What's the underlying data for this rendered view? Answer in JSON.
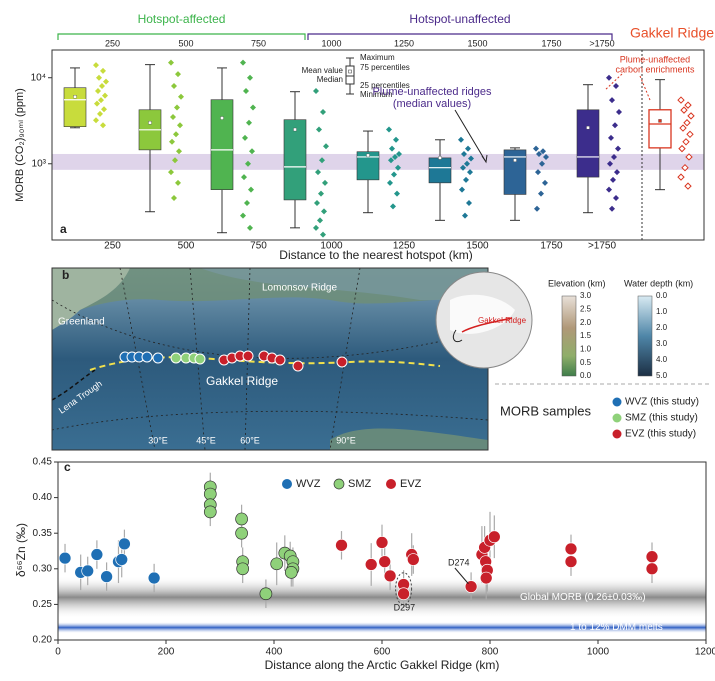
{
  "chart_data": [
    {
      "type": "box",
      "panel_label": "a",
      "ylabel": "MORB (CO₂)₉₀ₘₗ (ppm)",
      "xlabel": "Distance to the nearest hotspot (km)",
      "log_scale": true,
      "ylim": [
        130,
        21000
      ],
      "yticks": [
        {
          "value": 1000,
          "label": "10³"
        },
        {
          "value": 10000,
          "label": "10⁴"
        }
      ],
      "edge_labels": [
        "250",
        "500",
        "750",
        "1000",
        "1250",
        "1500",
        "1750",
        ">1750"
      ],
      "groups": [
        {
          "name": "Hotspot-affected",
          "color": "#3cb44b"
        },
        {
          "name": "Hotspot-unaffected",
          "color": "#4b2a8a"
        },
        {
          "name": "Gakkel Ridge",
          "color": "#e8502a"
        }
      ],
      "reference_band": [
        850,
        1300
      ],
      "band_color": "#d9cce6",
      "box_key": [
        "Maximum",
        "75 percentiles",
        "Mean value",
        "Median",
        "25 percentiles",
        "Minimum"
      ],
      "annotations": [
        "Plume-unaffected ridges",
        "(median values)",
        "Plume-unaffected",
        "carbon enrichments"
      ],
      "boxes": [
        {
          "color": "#c8dc3c",
          "filled": true,
          "min": 2620,
          "q1": 2700,
          "median": 5550,
          "q3": 7650,
          "max": 13000,
          "mean": 6000,
          "points": [
            14000,
            12000,
            10000,
            9000,
            8000,
            7000,
            6200,
            5500,
            5000,
            4300,
            3800,
            3200,
            2800
          ]
        },
        {
          "color": "#8cc83c",
          "filled": true,
          "min": 277,
          "q1": 1450,
          "median": 2480,
          "q3": 4240,
          "max": 14200,
          "mean": 3000,
          "points": [
            15000,
            11000,
            8000,
            6000,
            4500,
            3500,
            2800,
            2200,
            1800,
            1400,
            1100,
            800,
            600,
            400
          ]
        },
        {
          "color": "#50b450",
          "filled": true,
          "min": 158,
          "q1": 500,
          "median": 1450,
          "q3": 5550,
          "max": 13000,
          "mean": 3400,
          "points": [
            15000,
            10000,
            7000,
            4500,
            3000,
            2000,
            1400,
            1000,
            700,
            500,
            350,
            250,
            180
          ]
        },
        {
          "color": "#32a07a",
          "filled": true,
          "min": 180,
          "q1": 380,
          "median": 920,
          "q3": 3250,
          "max": 6880,
          "mean": 2500,
          "points": [
            7000,
            4000,
            2500,
            1600,
            1100,
            800,
            600,
            450,
            350,
            280,
            220,
            180,
            150
          ]
        },
        {
          "color": "#23968c",
          "filled": true,
          "min": 270,
          "q1": 650,
          "median": 1200,
          "q3": 1380,
          "max": 2400,
          "mean": 1250,
          "points": [
            2500,
            1900,
            1500,
            1300,
            1200,
            1100,
            900,
            750,
            600,
            450,
            320
          ]
        },
        {
          "color": "#1e7896",
          "filled": true,
          "min": 220,
          "q1": 600,
          "median": 900,
          "q3": 1170,
          "max": 1900,
          "mean": 1170,
          "points": [
            1900,
            1500,
            1300,
            1150,
            1000,
            900,
            800,
            650,
            500,
            350,
            250
          ]
        },
        {
          "color": "#2d6496",
          "filled": true,
          "min": 220,
          "q1": 440,
          "median": 1200,
          "q3": 1450,
          "max": 1530,
          "mean": 1100,
          "points": [
            1500,
            1400,
            1300,
            1200,
            1000,
            800,
            600,
            450,
            300
          ]
        },
        {
          "color": "#3c2d8c",
          "filled": true,
          "min": 270,
          "q1": 700,
          "median": 1200,
          "q3": 4240,
          "max": 8300,
          "mean": 2630,
          "points": [
            10000,
            8000,
            5500,
            4000,
            2800,
            2000,
            1500,
            1200,
            1000,
            800,
            650,
            500,
            400,
            300
          ]
        },
        {
          "color": "#d9351f",
          "filled": false,
          "min": 500,
          "q1": 1530,
          "median": 2900,
          "q3": 4240,
          "max": 9500,
          "mean": 3150,
          "points": [
            5500,
            4800,
            4200,
            3600,
            3000,
            2600,
            2200,
            1800,
            1500,
            1200,
            900,
            700,
            550
          ]
        }
      ]
    },
    {
      "type": "scatter",
      "panel_label": "c",
      "xlabel": "Distance along the Arctic Gakkel Ridge (km)",
      "ylabel": "δ⁶⁶Zn (‰)",
      "xlim": [
        0,
        1200
      ],
      "ylim": [
        0.2,
        0.45
      ],
      "xticks": [
        0,
        200,
        400,
        600,
        800,
        1000,
        1200
      ],
      "yticks": [
        {
          "value": 0.2,
          "label": "0.20"
        },
        {
          "value": 0.25,
          "label": "0.25"
        },
        {
          "value": 0.3,
          "label": "0.30"
        },
        {
          "value": 0.35,
          "label": "0.35"
        },
        {
          "value": 0.4,
          "label": "0.40"
        },
        {
          "value": 0.45,
          "label": "0.45"
        }
      ],
      "bands": [
        {
          "range": [
            0.23,
            0.29
          ],
          "label": "Global MORB (0.26±0.03‰)",
          "color": "#9a9a9a"
        },
        {
          "range": [
            0.21,
            0.225
          ],
          "label": "1 to 12% DMM melts",
          "color": "#2f5fc4"
        }
      ],
      "annotations": [
        "D274",
        "D297"
      ],
      "series": [
        {
          "name": "WVZ",
          "color": "#1f6fb4",
          "x": [
            13,
            42,
            55,
            72,
            90,
            112,
            118,
            123,
            178
          ],
          "values": [
            0.315,
            0.295,
            0.297,
            0.32,
            0.289,
            0.31,
            0.313,
            0.335,
            0.287
          ],
          "errors": [
            0.02,
            0.025,
            0.02,
            0.02,
            0.02,
            0.03,
            0.025,
            0.02,
            0.02
          ]
        },
        {
          "name": "SMZ",
          "color": "#8fd17a",
          "x": [
            282,
            282,
            282,
            282,
            340,
            340,
            342,
            342,
            385,
            405,
            420,
            430,
            435,
            435,
            432
          ],
          "values": [
            0.415,
            0.405,
            0.39,
            0.38,
            0.37,
            0.35,
            0.31,
            0.3,
            0.265,
            0.307,
            0.322,
            0.318,
            0.31,
            0.3,
            0.295
          ],
          "errors": [
            0.02,
            0.02,
            0.02,
            0.02,
            0.02,
            0.02,
            0.02,
            0.02,
            0.02,
            0.03,
            0.025,
            0.02,
            0.02,
            0.025,
            0.02
          ]
        },
        {
          "name": "EVZ",
          "color": "#c8202a",
          "x": [
            525,
            580,
            600,
            605,
            615,
            640,
            640,
            655,
            658,
            765,
            785,
            790,
            792,
            795,
            793,
            800,
            808,
            950,
            950,
            1100,
            1100
          ],
          "values": [
            0.333,
            0.306,
            0.337,
            0.31,
            0.29,
            0.278,
            0.265,
            0.32,
            0.313,
            0.275,
            0.32,
            0.33,
            0.31,
            0.298,
            0.287,
            0.34,
            0.345,
            0.328,
            0.31,
            0.317,
            0.3
          ],
          "errors": [
            0.02,
            0.03,
            0.025,
            0.02,
            0.02,
            0.02,
            0.02,
            0.03,
            0.02,
            0.02,
            0.04,
            0.03,
            0.03,
            0.03,
            0.03,
            0.04,
            0.03,
            0.02,
            0.02,
            0.02,
            0.02
          ]
        }
      ]
    }
  ],
  "map_panel": {
    "panel_label": "b",
    "places": [
      "Lomonsov Ridge",
      "Greenland",
      "Lena Trough",
      "Gakkel Ridge"
    ],
    "longitudes": [
      "30°E",
      "45°E",
      "60°E",
      "90°E"
    ],
    "inset_label": "Gakkel Ridge",
    "elevation_title": "Elevation (km)",
    "elevation_ticks": [
      "3.0",
      "2.5",
      "2.0",
      "1.5",
      "1.0",
      "0.5",
      "0.0"
    ],
    "depth_title": "Water depth (km)",
    "depth_ticks": [
      "0.0",
      "1.0",
      "2.0",
      "3.0",
      "4.0",
      "5.0"
    ],
    "samples_title": "MORB samples",
    "samples": [
      {
        "label": "WVZ (this study)",
        "color": "#1f6fb4"
      },
      {
        "label": "SMZ (this study)",
        "color": "#8fd17a"
      },
      {
        "label": "EVZ (this study)",
        "color": "#c8202a"
      }
    ]
  }
}
